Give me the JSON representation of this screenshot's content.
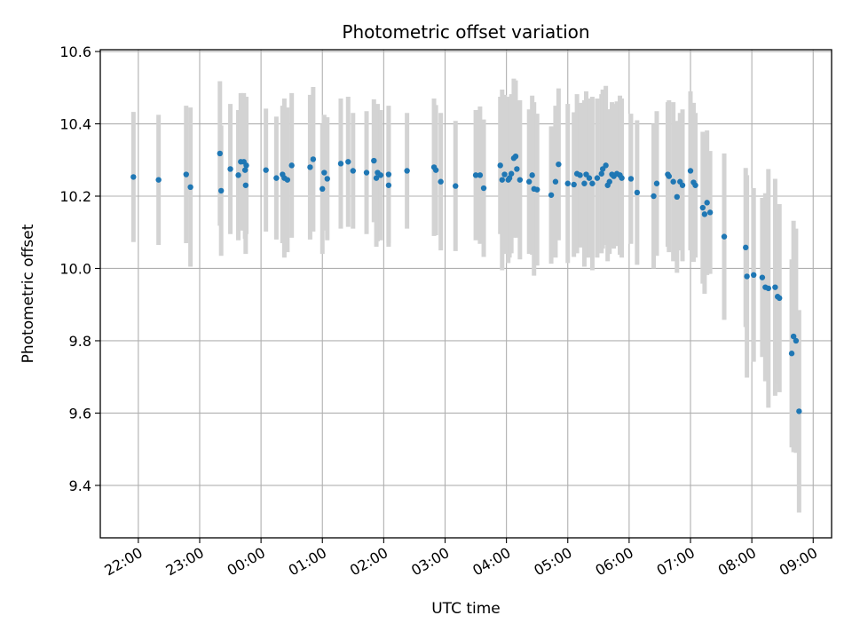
{
  "chart_data": {
    "type": "scatter",
    "title": "Photometric offset variation",
    "xlabel": "UTC time",
    "ylabel": "Photometric offset",
    "x_tick_labels": [
      "22:00",
      "23:00",
      "00:00",
      "01:00",
      "02:00",
      "03:00",
      "04:00",
      "05:00",
      "06:00",
      "07:00",
      "08:00",
      "09:00"
    ],
    "x_tick_hours": [
      22,
      23,
      24,
      25,
      26,
      27,
      28,
      29,
      30,
      31,
      32,
      33
    ],
    "y_ticks": [
      "9.4",
      "9.6",
      "9.8",
      "10.0",
      "10.2",
      "10.4",
      "10.6"
    ],
    "xlim_hours": [
      21.38,
      33.3
    ],
    "ylim": [
      9.255,
      10.605
    ],
    "grid": true,
    "colors": {
      "point": "#1f77b4",
      "errorbar": "#d3d3d3",
      "grid": "#b0b0b0"
    },
    "series": [
      {
        "note_x_units": "hours since 00:00 of first night (values >=24 are next day)",
        "x": [
          21.92,
          22.33,
          22.78,
          22.85,
          23.33,
          23.35,
          23.5,
          23.63,
          23.67,
          23.72,
          23.74,
          23.75,
          23.76,
          24.08,
          24.25,
          24.35,
          24.38,
          24.43,
          24.5,
          24.8,
          24.85,
          25.0,
          25.03,
          25.08,
          25.3,
          25.42,
          25.5,
          25.72,
          25.84,
          25.88,
          25.9,
          25.95,
          26.08,
          26.08,
          26.38,
          26.82,
          26.85,
          26.93,
          27.17,
          27.5,
          27.57,
          27.63,
          27.9,
          27.93,
          27.97,
          28.03,
          28.05,
          28.08,
          28.12,
          28.15,
          28.17,
          28.22,
          28.37,
          28.42,
          28.45,
          28.5,
          28.73,
          28.8,
          28.85,
          29.0,
          29.1,
          29.15,
          29.2,
          29.27,
          29.3,
          29.35,
          29.4,
          29.48,
          29.55,
          29.57,
          29.62,
          29.65,
          29.68,
          29.72,
          29.75,
          29.8,
          29.85,
          29.88,
          30.03,
          30.13,
          30.4,
          30.45,
          30.63,
          30.65,
          30.72,
          30.78,
          30.83,
          30.87,
          31.0,
          31.05,
          31.08,
          31.2,
          31.23,
          31.27,
          31.32,
          31.55,
          31.9,
          31.92,
          32.03,
          32.17,
          32.22,
          32.27,
          32.38,
          32.42,
          32.45,
          32.65,
          32.68,
          32.72,
          32.77
        ],
        "y": [
          10.253,
          10.245,
          10.26,
          10.225,
          10.318,
          10.215,
          10.275,
          10.258,
          10.295,
          10.295,
          10.272,
          10.23,
          10.285,
          10.272,
          10.25,
          10.26,
          10.25,
          10.245,
          10.285,
          10.28,
          10.302,
          10.22,
          10.265,
          10.248,
          10.29,
          10.295,
          10.27,
          10.265,
          10.298,
          10.25,
          10.265,
          10.258,
          10.23,
          10.26,
          10.27,
          10.28,
          10.272,
          10.24,
          10.228,
          10.258,
          10.258,
          10.222,
          10.285,
          10.245,
          10.26,
          10.245,
          10.25,
          10.262,
          10.305,
          10.31,
          10.275,
          10.245,
          10.24,
          10.258,
          10.22,
          10.218,
          10.203,
          10.24,
          10.288,
          10.235,
          10.232,
          10.262,
          10.258,
          10.235,
          10.26,
          10.25,
          10.235,
          10.25,
          10.262,
          10.275,
          10.285,
          10.23,
          10.24,
          10.26,
          10.255,
          10.262,
          10.258,
          10.25,
          10.248,
          10.21,
          10.2,
          10.235,
          10.26,
          10.255,
          10.24,
          10.198,
          10.24,
          10.23,
          10.27,
          10.238,
          10.23,
          10.168,
          10.15,
          10.182,
          10.155,
          10.088,
          10.058,
          9.978,
          9.982,
          9.975,
          9.948,
          9.945,
          9.948,
          9.922,
          9.918,
          9.765,
          9.812,
          9.8,
          9.605
        ],
        "yerr": [
          0.18,
          0.18,
          0.19,
          0.22,
          0.2,
          0.18,
          0.18,
          0.18,
          0.19,
          0.19,
          0.19,
          0.19,
          0.19,
          0.17,
          0.17,
          0.19,
          0.22,
          0.2,
          0.2,
          0.2,
          0.2,
          0.18,
          0.16,
          0.17,
          0.18,
          0.18,
          0.16,
          0.17,
          0.17,
          0.19,
          0.19,
          0.18,
          0.17,
          0.19,
          0.16,
          0.19,
          0.18,
          0.19,
          0.18,
          0.18,
          0.19,
          0.19,
          0.19,
          0.25,
          0.22,
          0.23,
          0.22,
          0.22,
          0.22,
          0.21,
          0.19,
          0.22,
          0.2,
          0.22,
          0.24,
          0.21,
          0.19,
          0.21,
          0.21,
          0.22,
          0.2,
          0.22,
          0.2,
          0.23,
          0.23,
          0.22,
          0.24,
          0.22,
          0.22,
          0.22,
          0.22,
          0.21,
          0.2,
          0.2,
          0.2,
          0.2,
          0.22,
          0.22,
          0.18,
          0.2,
          0.2,
          0.2,
          0.2,
          0.21,
          0.22,
          0.21,
          0.19,
          0.21,
          0.22,
          0.22,
          0.2,
          0.21,
          0.22,
          0.2,
          0.17,
          0.23,
          0.22,
          0.28,
          0.24,
          0.22,
          0.26,
          0.33,
          0.3,
          0.24,
          0.26,
          0.26,
          0.32,
          0.31,
          0.28
        ]
      }
    ]
  }
}
